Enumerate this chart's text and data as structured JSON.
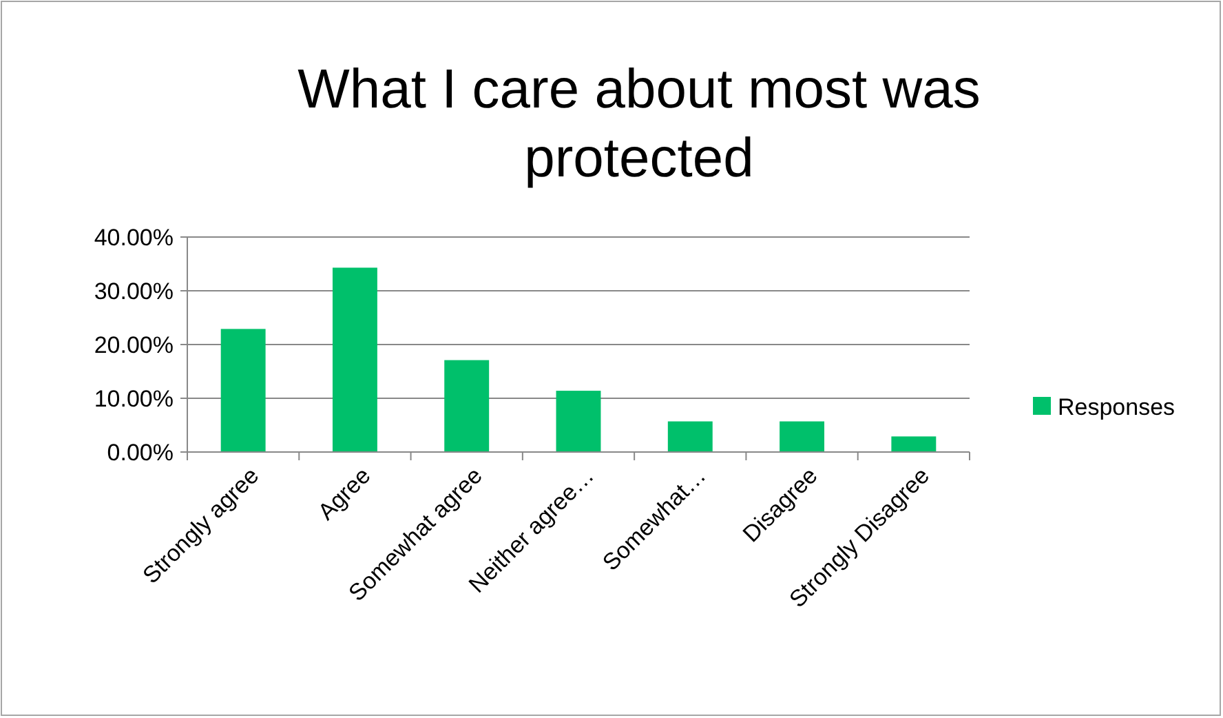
{
  "chart_data": {
    "type": "bar",
    "title": "What I care about most was protected",
    "categories": [
      "Strongly agree",
      "Agree",
      "Somewhat agree",
      "Neither agree…",
      "Somewhat…",
      "Disagree",
      "Strongly Disagree"
    ],
    "series": [
      {
        "name": "Responses",
        "color": "#00c06b",
        "values": [
          22.9,
          34.3,
          17.1,
          11.4,
          5.7,
          5.7,
          2.9
        ]
      }
    ],
    "ylim": [
      0,
      40
    ],
    "yticks": [
      {
        "value": 0,
        "label": "0.00%"
      },
      {
        "value": 10,
        "label": "10.00%"
      },
      {
        "value": 20,
        "label": "20.00%"
      },
      {
        "value": 30,
        "label": "30.00%"
      },
      {
        "value": 40,
        "label": "40.00%"
      }
    ],
    "grid": "y",
    "legend": "right"
  }
}
